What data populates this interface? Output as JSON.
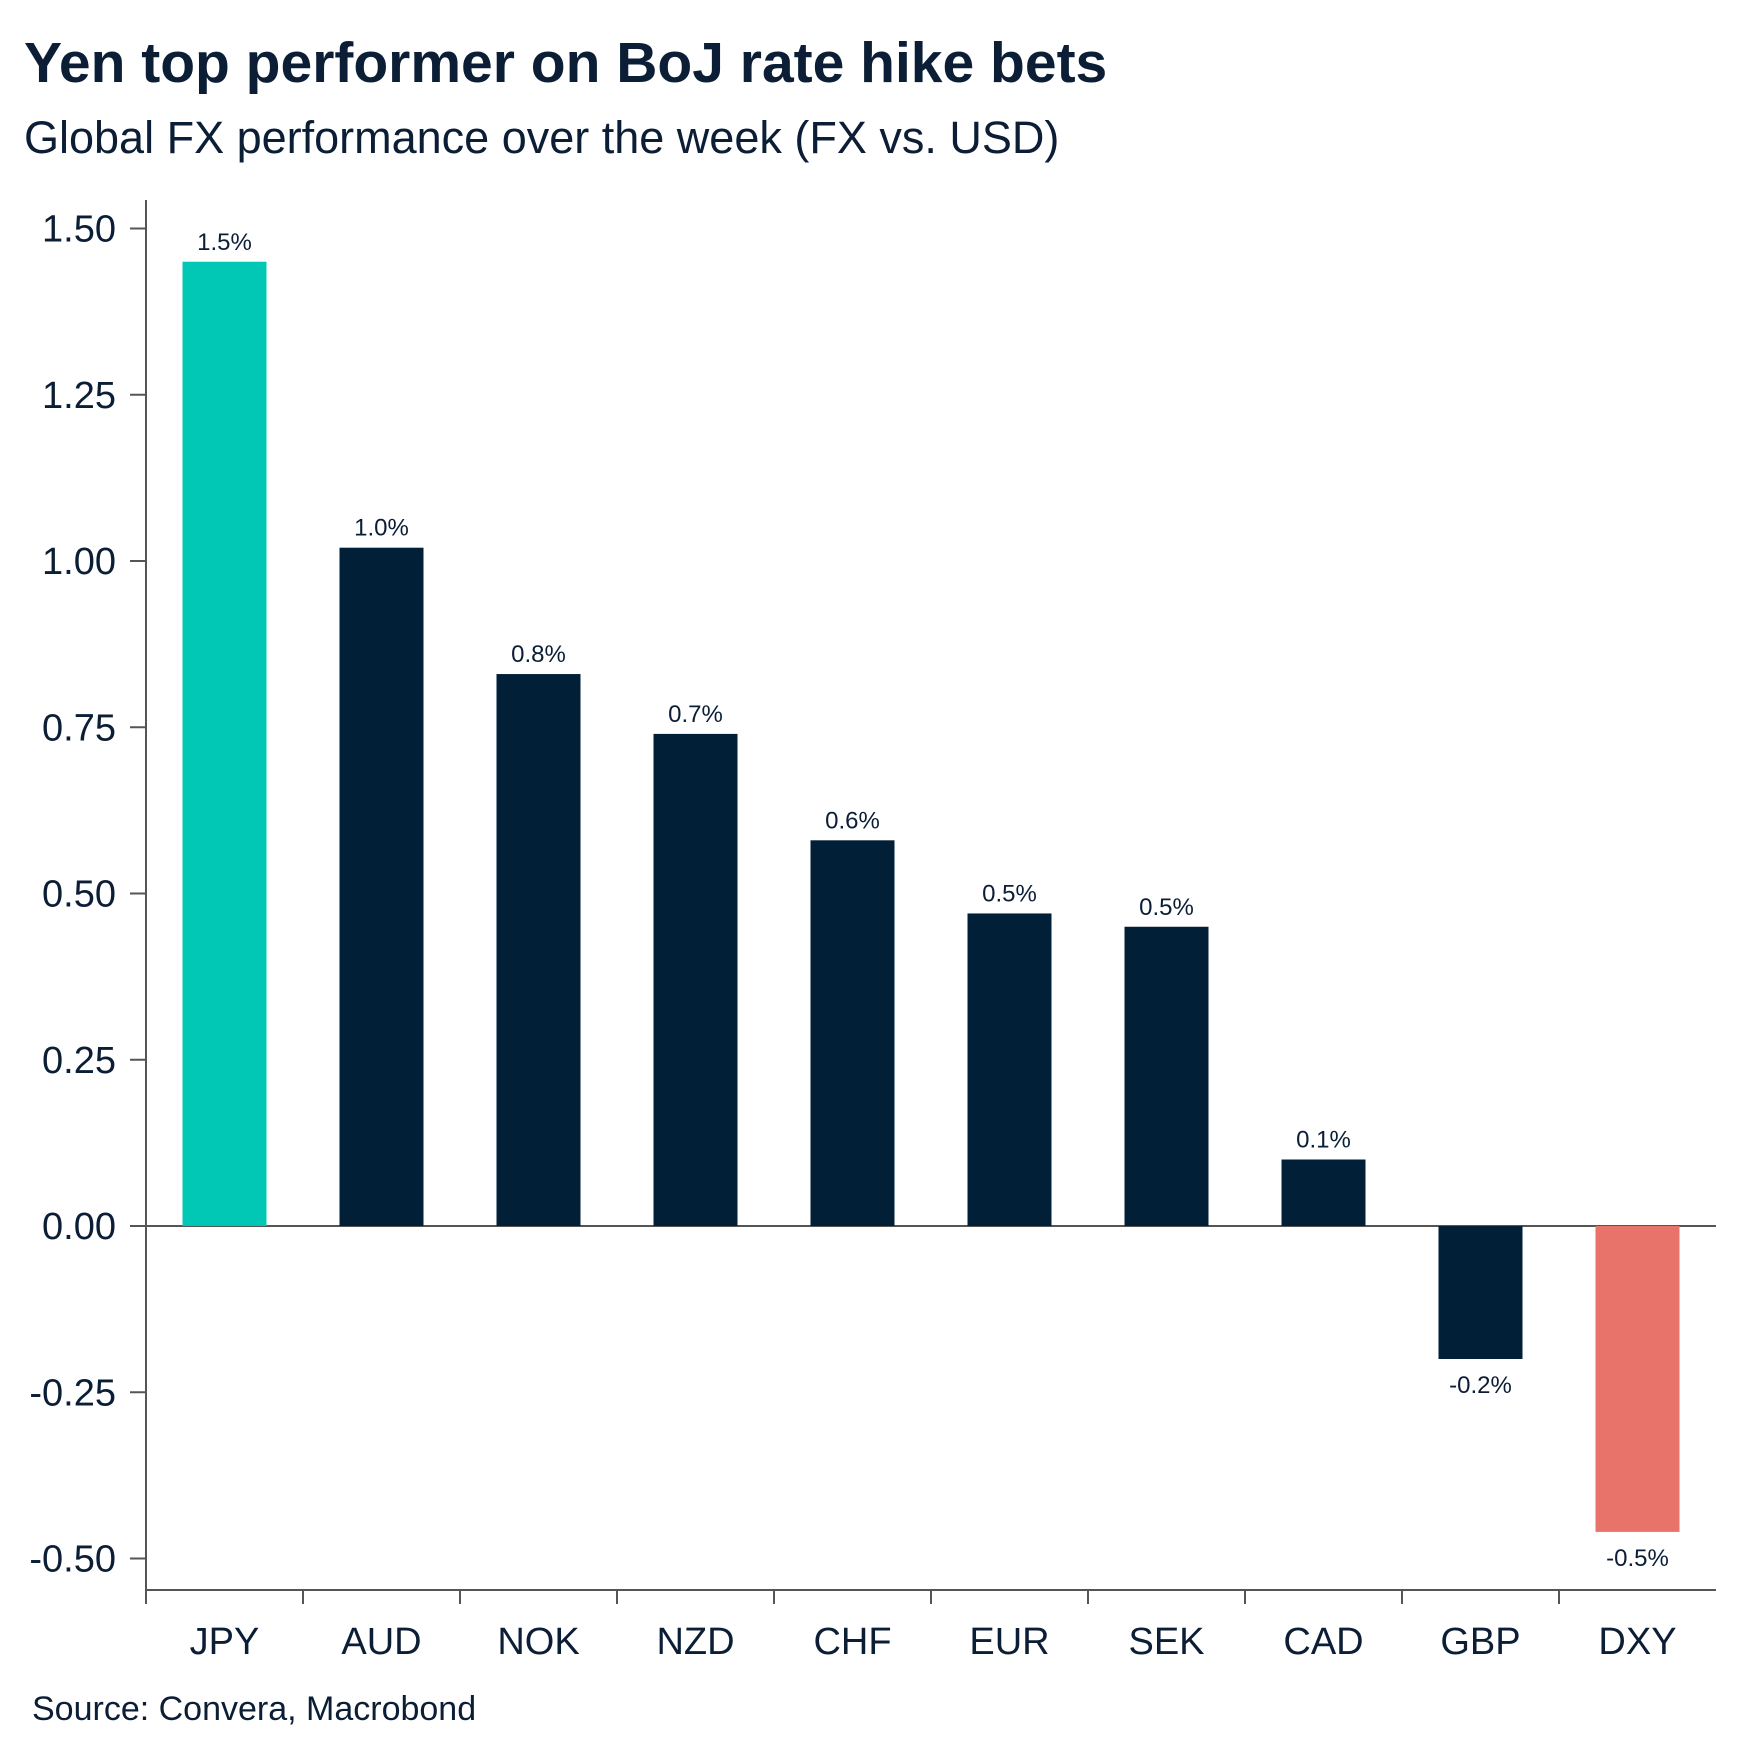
{
  "title": "Yen top performer on BoJ rate hike bets",
  "subtitle": "Global FX performance over the week (FX vs. USD)",
  "source": "Source: Convera, Macrobond",
  "colors": {
    "default_bar": "#021f38",
    "highlight_positive": "#00c8b4",
    "highlight_negative": "#e8736a",
    "axis": "#555555",
    "text": "#0b1e36"
  },
  "chart_data": {
    "type": "bar",
    "title": "Yen top performer on BoJ rate hike bets",
    "subtitle": "Global FX performance over the week (FX vs. USD)",
    "categories": [
      "JPY",
      "AUD",
      "NOK",
      "NZD",
      "CHF",
      "EUR",
      "SEK",
      "CAD",
      "GBP",
      "DXY"
    ],
    "values": [
      1.45,
      1.02,
      0.83,
      0.74,
      0.58,
      0.47,
      0.45,
      0.1,
      -0.2,
      -0.46
    ],
    "data_labels": [
      "1.5%",
      "1.0%",
      "0.8%",
      "0.7%",
      "0.6%",
      "0.5%",
      "0.5%",
      "0.1%",
      "-0.2%",
      "-0.5%"
    ],
    "bar_colors": [
      "#00c8b4",
      "#021f38",
      "#021f38",
      "#021f38",
      "#021f38",
      "#021f38",
      "#021f38",
      "#021f38",
      "#021f38",
      "#e8736a"
    ],
    "ylim": [
      -0.55,
      1.55
    ],
    "yticks": [
      1.5,
      1.25,
      1.0,
      0.75,
      0.5,
      0.25,
      0.0,
      -0.25,
      -0.5
    ],
    "ytick_labels": [
      "1.50",
      "1.25",
      "1.00",
      "0.75",
      "0.50",
      "0.25",
      "0.00",
      "-0.25",
      "-0.50"
    ],
    "xlabel": "",
    "ylabel": "",
    "grid": false,
    "legend": "none"
  }
}
